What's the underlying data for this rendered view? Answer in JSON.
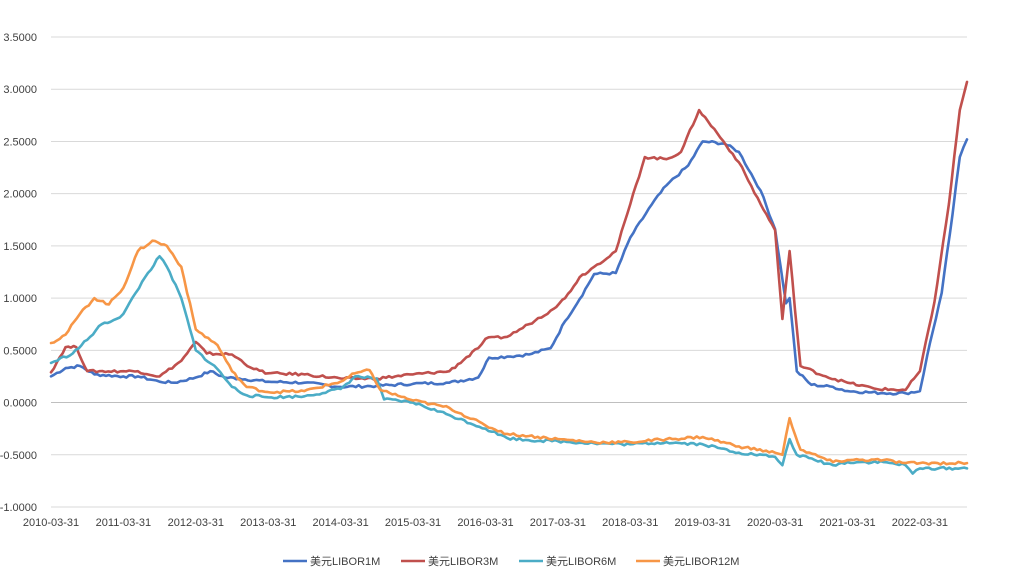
{
  "chart_data": {
    "type": "line",
    "title": "",
    "xlabel": "",
    "ylabel": "",
    "ylim": [
      -1.0,
      3.5
    ],
    "y_ticks": [
      "3.5000",
      "3.0000",
      "2.5000",
      "2.0000",
      "1.5000",
      "1.0000",
      "0.5000",
      "0.0000",
      "-0.5000",
      "-1.0000"
    ],
    "x_ticks": [
      "2010-03-31",
      "2011-03-31",
      "2012-03-31",
      "2013-03-31",
      "2014-03-31",
      "2015-03-31",
      "2016-03-31",
      "2017-03-31",
      "2018-03-31",
      "2019-03-31",
      "2020-03-31",
      "2021-03-31",
      "2022-03-31"
    ],
    "grid": "horizontal",
    "legend_position": "bottom",
    "series": [
      {
        "name": "美元LIBOR1M",
        "color": "#4472C4",
        "points": [
          [
            2010.0,
            0.25
          ],
          [
            2010.2,
            0.33
          ],
          [
            2010.4,
            0.35
          ],
          [
            2010.6,
            0.27
          ],
          [
            2011.0,
            0.25
          ],
          [
            2011.2,
            0.25
          ],
          [
            2011.5,
            0.2
          ],
          [
            2011.7,
            0.19
          ],
          [
            2012.0,
            0.24
          ],
          [
            2012.2,
            0.3
          ],
          [
            2012.4,
            0.24
          ],
          [
            2012.6,
            0.23
          ],
          [
            2013.0,
            0.2
          ],
          [
            2013.5,
            0.19
          ],
          [
            2014.0,
            0.15
          ],
          [
            2014.5,
            0.16
          ],
          [
            2015.0,
            0.18
          ],
          [
            2015.5,
            0.19
          ],
          [
            2015.9,
            0.24
          ],
          [
            2016.05,
            0.43
          ],
          [
            2016.3,
            0.44
          ],
          [
            2016.6,
            0.46
          ],
          [
            2016.9,
            0.52
          ],
          [
            2017.1,
            0.78
          ],
          [
            2017.3,
            0.99
          ],
          [
            2017.5,
            1.23
          ],
          [
            2017.8,
            1.24
          ],
          [
            2018.0,
            1.58
          ],
          [
            2018.3,
            1.9
          ],
          [
            2018.5,
            2.08
          ],
          [
            2018.8,
            2.27
          ],
          [
            2019.0,
            2.5
          ],
          [
            2019.3,
            2.48
          ],
          [
            2019.5,
            2.4
          ],
          [
            2019.8,
            2.03
          ],
          [
            2020.0,
            1.66
          ],
          [
            2020.15,
            0.95
          ],
          [
            2020.2,
            1.0
          ],
          [
            2020.3,
            0.3
          ],
          [
            2020.5,
            0.17
          ],
          [
            2020.8,
            0.15
          ],
          [
            2021.0,
            0.11
          ],
          [
            2021.5,
            0.09
          ],
          [
            2021.8,
            0.09
          ],
          [
            2022.0,
            0.11
          ],
          [
            2022.1,
            0.45
          ],
          [
            2022.3,
            1.05
          ],
          [
            2022.45,
            1.8
          ],
          [
            2022.55,
            2.35
          ],
          [
            2022.65,
            2.52
          ]
        ]
      },
      {
        "name": "美元LIBOR3M",
        "color": "#C0504D",
        "points": [
          [
            2010.0,
            0.29
          ],
          [
            2010.2,
            0.53
          ],
          [
            2010.35,
            0.53
          ],
          [
            2010.5,
            0.3
          ],
          [
            2011.0,
            0.3
          ],
          [
            2011.2,
            0.3
          ],
          [
            2011.5,
            0.25
          ],
          [
            2011.8,
            0.4
          ],
          [
            2012.0,
            0.58
          ],
          [
            2012.15,
            0.47
          ],
          [
            2012.5,
            0.46
          ],
          [
            2012.8,
            0.32
          ],
          [
            2013.0,
            0.28
          ],
          [
            2013.5,
            0.27
          ],
          [
            2014.0,
            0.23
          ],
          [
            2014.5,
            0.23
          ],
          [
            2015.0,
            0.27
          ],
          [
            2015.5,
            0.3
          ],
          [
            2015.9,
            0.52
          ],
          [
            2016.0,
            0.61
          ],
          [
            2016.3,
            0.63
          ],
          [
            2016.6,
            0.75
          ],
          [
            2016.9,
            0.88
          ],
          [
            2017.1,
            1.0
          ],
          [
            2017.3,
            1.2
          ],
          [
            2017.5,
            1.3
          ],
          [
            2017.8,
            1.45
          ],
          [
            2018.0,
            1.9
          ],
          [
            2018.2,
            2.35
          ],
          [
            2018.5,
            2.33
          ],
          [
            2018.7,
            2.4
          ],
          [
            2018.95,
            2.8
          ],
          [
            2019.2,
            2.58
          ],
          [
            2019.5,
            2.3
          ],
          [
            2019.8,
            1.9
          ],
          [
            2020.0,
            1.65
          ],
          [
            2020.1,
            0.8
          ],
          [
            2020.2,
            1.45
          ],
          [
            2020.35,
            0.35
          ],
          [
            2020.7,
            0.25
          ],
          [
            2021.0,
            0.19
          ],
          [
            2021.4,
            0.13
          ],
          [
            2021.8,
            0.12
          ],
          [
            2022.0,
            0.3
          ],
          [
            2022.2,
            0.96
          ],
          [
            2022.4,
            1.9
          ],
          [
            2022.55,
            2.8
          ],
          [
            2022.65,
            3.07
          ]
        ]
      },
      {
        "name": "美元LIBOR6M",
        "color": "#4BACC6",
        "points": [
          [
            2010.0,
            0.38
          ],
          [
            2010.3,
            0.47
          ],
          [
            2010.5,
            0.6
          ],
          [
            2010.7,
            0.75
          ],
          [
            2010.9,
            0.8
          ],
          [
            2011.0,
            0.85
          ],
          [
            2011.3,
            1.2
          ],
          [
            2011.5,
            1.4
          ],
          [
            2011.6,
            1.3
          ],
          [
            2011.8,
            1.0
          ],
          [
            2012.0,
            0.5
          ],
          [
            2012.3,
            0.32
          ],
          [
            2012.5,
            0.15
          ],
          [
            2012.7,
            0.07
          ],
          [
            2013.0,
            0.05
          ],
          [
            2013.5,
            0.06
          ],
          [
            2014.0,
            0.13
          ],
          [
            2014.2,
            0.25
          ],
          [
            2014.5,
            0.23
          ],
          [
            2014.6,
            0.03
          ],
          [
            2015.0,
            0.0
          ],
          [
            2015.5,
            -0.12
          ],
          [
            2016.0,
            -0.25
          ],
          [
            2016.3,
            -0.34
          ],
          [
            2016.6,
            -0.36
          ],
          [
            2017.0,
            -0.37
          ],
          [
            2017.5,
            -0.39
          ],
          [
            2018.0,
            -0.4
          ],
          [
            2018.5,
            -0.38
          ],
          [
            2019.0,
            -0.4
          ],
          [
            2019.5,
            -0.48
          ],
          [
            2020.0,
            -0.52
          ],
          [
            2020.1,
            -0.6
          ],
          [
            2020.2,
            -0.35
          ],
          [
            2020.3,
            -0.5
          ],
          [
            2020.8,
            -0.6
          ],
          [
            2021.0,
            -0.57
          ],
          [
            2021.5,
            -0.57
          ],
          [
            2021.8,
            -0.6
          ],
          [
            2021.9,
            -0.68
          ],
          [
            2022.0,
            -0.63
          ],
          [
            2022.65,
            -0.63
          ]
        ]
      },
      {
        "name": "美元LIBOR12M",
        "color": "#F79646",
        "points": [
          [
            2010.0,
            0.57
          ],
          [
            2010.2,
            0.65
          ],
          [
            2010.4,
            0.85
          ],
          [
            2010.6,
            1.0
          ],
          [
            2010.8,
            0.94
          ],
          [
            2011.0,
            1.1
          ],
          [
            2011.2,
            1.45
          ],
          [
            2011.4,
            1.55
          ],
          [
            2011.6,
            1.5
          ],
          [
            2011.8,
            1.3
          ],
          [
            2012.0,
            0.7
          ],
          [
            2012.3,
            0.55
          ],
          [
            2012.5,
            0.3
          ],
          [
            2012.7,
            0.15
          ],
          [
            2013.0,
            0.1
          ],
          [
            2013.5,
            0.11
          ],
          [
            2014.0,
            0.2
          ],
          [
            2014.2,
            0.28
          ],
          [
            2014.4,
            0.31
          ],
          [
            2014.55,
            0.12
          ],
          [
            2015.0,
            0.02
          ],
          [
            2015.5,
            -0.05
          ],
          [
            2016.0,
            -0.22
          ],
          [
            2016.3,
            -0.3
          ],
          [
            2016.6,
            -0.32
          ],
          [
            2017.0,
            -0.35
          ],
          [
            2017.5,
            -0.38
          ],
          [
            2018.0,
            -0.38
          ],
          [
            2018.5,
            -0.35
          ],
          [
            2019.0,
            -0.33
          ],
          [
            2019.5,
            -0.42
          ],
          [
            2020.0,
            -0.48
          ],
          [
            2020.1,
            -0.5
          ],
          [
            2020.2,
            -0.15
          ],
          [
            2020.35,
            -0.45
          ],
          [
            2020.8,
            -0.57
          ],
          [
            2021.0,
            -0.55
          ],
          [
            2021.5,
            -0.55
          ],
          [
            2021.8,
            -0.58
          ],
          [
            2022.0,
            -0.58
          ],
          [
            2022.65,
            -0.58
          ]
        ]
      }
    ]
  }
}
